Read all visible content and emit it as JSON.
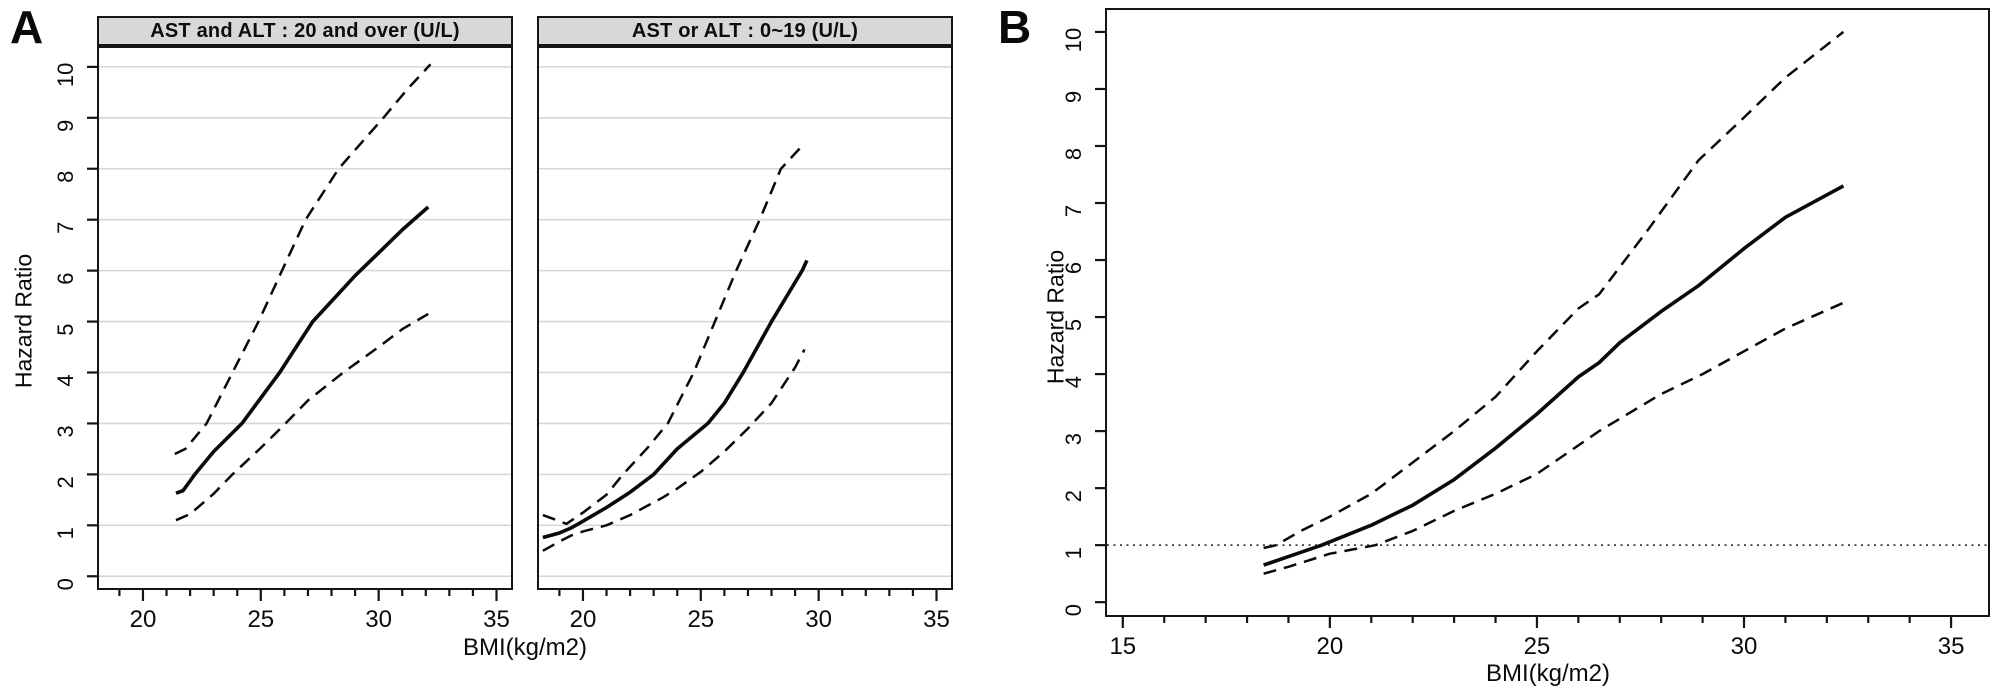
{
  "figure": {
    "panel_a_label": "A",
    "panel_b_label": "B",
    "ylabel": "Hazard Ratio",
    "xlabel": "BMI(kg/m2)"
  },
  "chart_data": [
    {
      "type": "line",
      "panel": "A-left",
      "title": "AST and ALT : 20 and over (U/L)",
      "xlabel": "BMI(kg/m2)",
      "ylabel": "Hazard Ratio",
      "xlim": [
        18.05,
        35.7
      ],
      "ylim": [
        -0.27,
        10.41
      ],
      "xticks": [
        20,
        25,
        30,
        35
      ],
      "yticks": [
        0,
        1,
        2,
        3,
        4,
        5,
        6,
        7,
        8,
        9,
        10
      ],
      "minor_x_step": 1,
      "grid": "horizontal",
      "legend": "none",
      "series": [
        {
          "name": "hazard_ratio",
          "style": "solid",
          "points": [
            [
              21.4,
              1.63
            ],
            [
              21.7,
              1.68
            ],
            [
              22.2,
              2.0
            ],
            [
              23,
              2.45
            ],
            [
              24.2,
              3.0
            ],
            [
              25,
              3.5
            ],
            [
              25.8,
              4.0
            ],
            [
              26.5,
              4.5
            ],
            [
              27.2,
              5.0
            ],
            [
              28.3,
              5.55
            ],
            [
              29,
              5.9
            ],
            [
              30,
              6.35
            ],
            [
              31,
              6.8
            ],
            [
              32.1,
              7.25
            ]
          ]
        },
        {
          "name": "upper_95_ci",
          "style": "dashed",
          "points": [
            [
              21.35,
              2.4
            ],
            [
              21.8,
              2.5
            ],
            [
              22.7,
              3.0
            ],
            [
              23.8,
              4.0
            ],
            [
              24.9,
              5.0
            ],
            [
              25.9,
              6.0
            ],
            [
              26.9,
              7.0
            ],
            [
              28.3,
              8.0
            ],
            [
              30.2,
              9.0
            ],
            [
              31.2,
              9.55
            ],
            [
              32.2,
              10.05
            ]
          ]
        },
        {
          "name": "lower_95_ci",
          "style": "dashed",
          "points": [
            [
              21.4,
              1.1
            ],
            [
              22,
              1.22
            ],
            [
              23,
              1.62
            ],
            [
              23.8,
              2.0
            ],
            [
              25,
              2.52
            ],
            [
              26.05,
              3.0
            ],
            [
              27,
              3.45
            ],
            [
              28.5,
              4.0
            ],
            [
              30,
              4.5
            ],
            [
              31,
              4.85
            ],
            [
              32.1,
              5.15
            ]
          ]
        }
      ]
    },
    {
      "type": "line",
      "panel": "A-right",
      "title": "AST or ALT : 0~19 (U/L)",
      "xlabel": "BMI(kg/m2)",
      "ylabel": "Hazard Ratio",
      "xlim": [
        18.05,
        35.7
      ],
      "ylim": [
        -0.27,
        10.41
      ],
      "xticks": [
        20,
        25,
        30,
        35
      ],
      "yticks": [
        0,
        1,
        2,
        3,
        4,
        5,
        6,
        7,
        8,
        9,
        10
      ],
      "minor_x_step": 1,
      "grid": "horizontal",
      "legend": "none",
      "series": [
        {
          "name": "hazard_ratio",
          "style": "solid",
          "points": [
            [
              18.3,
              0.76
            ],
            [
              19,
              0.85
            ],
            [
              19.5,
              0.95
            ],
            [
              20,
              1.08
            ],
            [
              21,
              1.35
            ],
            [
              22,
              1.65
            ],
            [
              23,
              2.0
            ],
            [
              23.4,
              2.2
            ],
            [
              24,
              2.5
            ],
            [
              25.3,
              3.0
            ],
            [
              26,
              3.4
            ],
            [
              26.8,
              4.0
            ],
            [
              28,
              5.0
            ],
            [
              29.3,
              6.0
            ],
            [
              29.5,
              6.2
            ]
          ]
        },
        {
          "name": "upper_95_ci",
          "style": "dashed",
          "points": [
            [
              18.3,
              1.2
            ],
            [
              19.3,
              1.03
            ],
            [
              20,
              1.25
            ],
            [
              21,
              1.6
            ],
            [
              21.7,
              2.0
            ],
            [
              22.7,
              2.5
            ],
            [
              23.6,
              3.0
            ],
            [
              24.7,
              4.0
            ],
            [
              25.6,
              5.0
            ],
            [
              26.5,
              6.0
            ],
            [
              27.5,
              7.0
            ],
            [
              28.4,
              8.0
            ],
            [
              29.4,
              8.5
            ]
          ]
        },
        {
          "name": "lower_95_ci",
          "style": "dashed",
          "points": [
            [
              18.3,
              0.5
            ],
            [
              19,
              0.68
            ],
            [
              19.5,
              0.8
            ],
            [
              20,
              0.88
            ],
            [
              21,
              1.0
            ],
            [
              22,
              1.2
            ],
            [
              23,
              1.45
            ],
            [
              23.4,
              1.55
            ],
            [
              24,
              1.72
            ],
            [
              25,
              2.05
            ],
            [
              26,
              2.45
            ],
            [
              27,
              2.9
            ],
            [
              28,
              3.4
            ],
            [
              29,
              4.1
            ],
            [
              29.4,
              4.45
            ]
          ]
        }
      ]
    },
    {
      "type": "line",
      "panel": "B",
      "title": "",
      "xlabel": "BMI(kg/m2)",
      "ylabel": "Hazard Ratio",
      "xlim": [
        14.57,
        35.94
      ],
      "ylim": [
        -0.26,
        10.42
      ],
      "xticks": [
        15,
        20,
        25,
        30,
        35
      ],
      "yticks": [
        0,
        1,
        2,
        3,
        4,
        5,
        6,
        7,
        8,
        9,
        10
      ],
      "minor_x_step": 1,
      "grid": "off",
      "legend": "none",
      "reference_line_y": 1,
      "series": [
        {
          "name": "hazard_ratio",
          "style": "solid",
          "points": [
            [
              18.4,
              0.65
            ],
            [
              19,
              0.8
            ],
            [
              19.8,
              1.0
            ],
            [
              21,
              1.35
            ],
            [
              22,
              1.7
            ],
            [
              23,
              2.15
            ],
            [
              24,
              2.7
            ],
            [
              25,
              3.3
            ],
            [
              26,
              3.95
            ],
            [
              26.5,
              4.2
            ],
            [
              27,
              4.55
            ],
            [
              28,
              5.1
            ],
            [
              28.9,
              5.55
            ],
            [
              30,
              6.2
            ],
            [
              31,
              6.75
            ],
            [
              32.4,
              7.3
            ]
          ]
        },
        {
          "name": "upper_95_ci",
          "style": "dashed",
          "points": [
            [
              18.4,
              0.95
            ],
            [
              18.7,
              1.0
            ],
            [
              19.3,
              1.25
            ],
            [
              20,
              1.5
            ],
            [
              21,
              1.9
            ],
            [
              22,
              2.45
            ],
            [
              23,
              3.0
            ],
            [
              24,
              3.6
            ],
            [
              25,
              4.4
            ],
            [
              26,
              5.15
            ],
            [
              26.5,
              5.4
            ],
            [
              27.7,
              6.55
            ],
            [
              28.9,
              7.75
            ],
            [
              30,
              8.5
            ],
            [
              31,
              9.2
            ],
            [
              32.4,
              10.0
            ]
          ]
        },
        {
          "name": "lower_95_ci",
          "style": "dashed",
          "points": [
            [
              18.4,
              0.5
            ],
            [
              19,
              0.62
            ],
            [
              20,
              0.85
            ],
            [
              21.1,
              1.0
            ],
            [
              22,
              1.25
            ],
            [
              23,
              1.6
            ],
            [
              24,
              1.9
            ],
            [
              25,
              2.25
            ],
            [
              26,
              2.75
            ],
            [
              26.5,
              3.0
            ],
            [
              28,
              3.65
            ],
            [
              29,
              4.0
            ],
            [
              30,
              4.4
            ],
            [
              31,
              4.8
            ],
            [
              32.4,
              5.25
            ]
          ]
        }
      ]
    }
  ],
  "style_colors": {
    "line": "#0a0a0a",
    "gridline": "#d6d6d6",
    "strip_bg": "#d8d8d8",
    "reference_line": "#3a3a3a"
  }
}
